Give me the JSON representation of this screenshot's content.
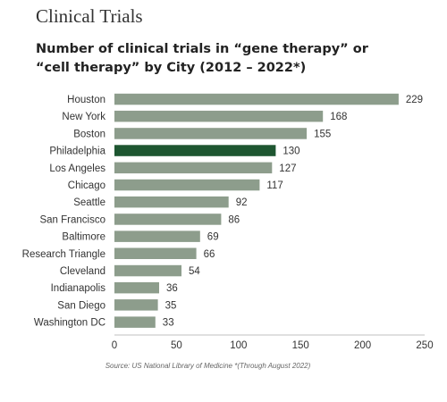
{
  "page": {
    "section_title": "Clinical Trials",
    "source": "Source:  US National Library of Medicine *(Through August 2022)"
  },
  "colors": {
    "bar": "#8d9d8c",
    "highlight": "#1e5631",
    "text": "#333333",
    "axis": "#bfbfbf"
  },
  "chart_data": {
    "type": "bar",
    "orientation": "horizontal",
    "title": "Number of clinical trials in “gene therapy” or “cell therapy” by City (2012 – 2022*)",
    "categories": [
      "Houston",
      "New York",
      "Boston",
      "Philadelphia",
      "Los Angeles",
      "Chicago",
      "Seattle",
      "San Francisco",
      "Baltimore",
      "Research Triangle",
      "Cleveland",
      "Indianapolis",
      "San Diego",
      "Washington DC"
    ],
    "values": [
      229,
      168,
      155,
      130,
      127,
      117,
      92,
      86,
      69,
      66,
      54,
      36,
      35,
      33
    ],
    "highlighted_category": "Philadelphia",
    "xlim": [
      0,
      250
    ],
    "xticks": [
      0,
      50,
      100,
      150,
      200,
      250
    ],
    "grid": false,
    "data_labels": true
  }
}
